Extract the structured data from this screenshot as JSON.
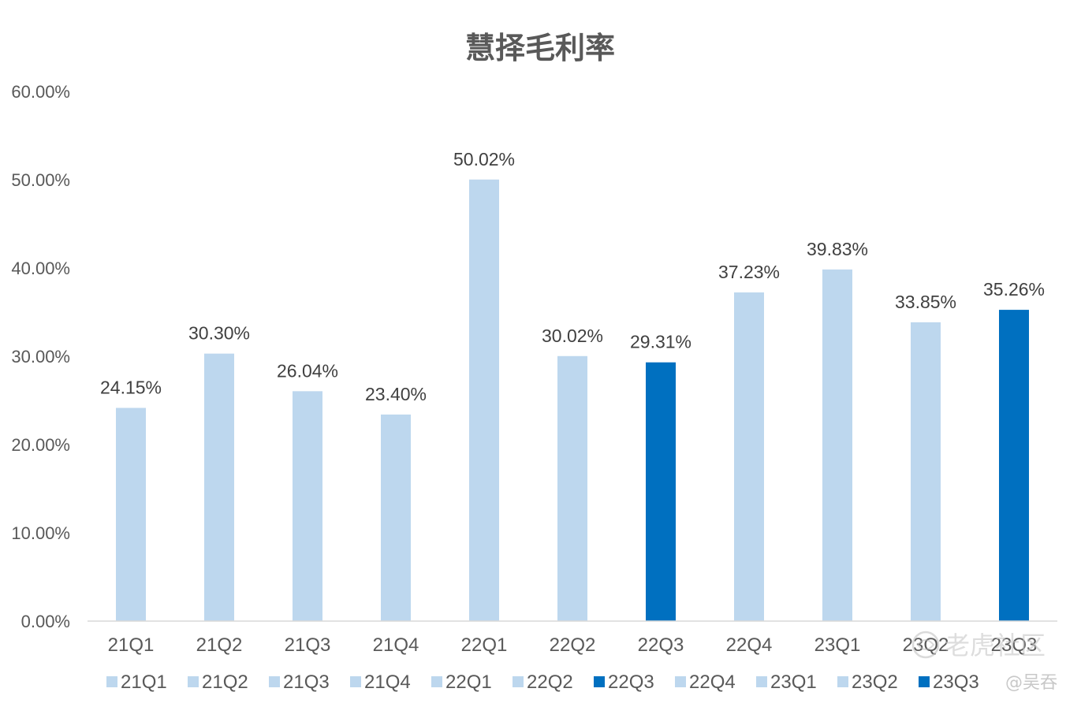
{
  "chart_data": {
    "type": "bar",
    "title": "慧择毛利率",
    "categories": [
      "21Q1",
      "21Q2",
      "21Q3",
      "21Q4",
      "22Q1",
      "22Q2",
      "22Q3",
      "22Q4",
      "23Q1",
      "23Q2",
      "23Q3"
    ],
    "values": [
      24.15,
      30.3,
      26.04,
      23.4,
      50.02,
      30.02,
      29.31,
      37.23,
      39.83,
      33.85,
      35.26
    ],
    "data_labels": [
      "24.15%",
      "30.30%",
      "26.04%",
      "23.40%",
      "50.02%",
      "30.02%",
      "29.31%",
      "37.23%",
      "39.83%",
      "33.85%",
      "35.26%"
    ],
    "colors": [
      "#bdd7ee",
      "#bdd7ee",
      "#bdd7ee",
      "#bdd7ee",
      "#bdd7ee",
      "#bdd7ee",
      "#0070c0",
      "#bdd7ee",
      "#bdd7ee",
      "#bdd7ee",
      "#0070c0"
    ],
    "ylim": [
      0,
      60
    ],
    "yticks": [
      "0.00%",
      "10.00%",
      "20.00%",
      "30.00%",
      "40.00%",
      "50.00%",
      "60.00%"
    ],
    "grid": false,
    "legend": "bottom",
    "legend_entries": [
      "21Q1",
      "21Q2",
      "21Q3",
      "21Q4",
      "22Q1",
      "22Q2",
      "22Q3",
      "22Q4",
      "23Q1",
      "23Q2",
      "23Q3"
    ]
  },
  "watermark": {
    "brand": "老虎社区",
    "author": "@吴吞"
  }
}
